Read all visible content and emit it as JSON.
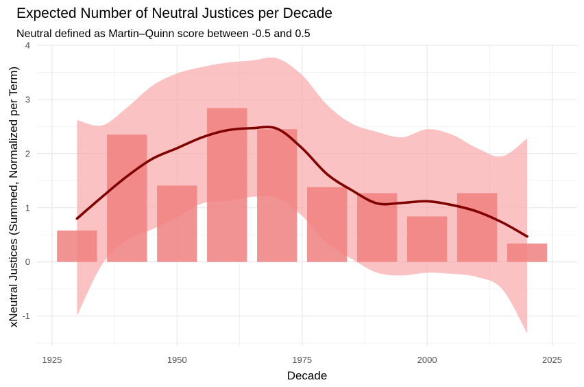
{
  "chart_data": {
    "type": "bar",
    "title": "Expected Number of Neutral Justices per Decade",
    "subtitle": "Neutral defined as Martin–Quinn score between -0.5 and 0.5",
    "xlabel": "Decade",
    "ylabel": "xNeutral Justices (Summed, Normalized per Term)",
    "xlim": [
      1922,
      2030
    ],
    "ylim": [
      -1.55,
      4.0
    ],
    "x_ticks": [
      1925,
      1950,
      1975,
      2000,
      2025
    ],
    "y_ticks": [
      -1,
      0,
      1,
      2,
      3,
      4
    ],
    "grid": true,
    "legend": "none",
    "bar_color": "#f08080",
    "smooth_color": "#800000",
    "band_color": "#f8a5a5",
    "bars": {
      "x": [
        1930,
        1940,
        1950,
        1960,
        1970,
        1980,
        1990,
        2000,
        2010,
        2020
      ],
      "values": [
        0.58,
        2.35,
        1.41,
        2.84,
        2.45,
        1.38,
        1.27,
        0.84,
        1.27,
        0.34
      ]
    },
    "smooth": {
      "x": [
        1930,
        1935,
        1940,
        1945,
        1950,
        1955,
        1960,
        1965,
        1970,
        1975,
        1980,
        1985,
        1990,
        1995,
        2000,
        2005,
        2010,
        2015,
        2020
      ],
      "values": [
        0.8,
        1.2,
        1.58,
        1.9,
        2.1,
        2.3,
        2.43,
        2.47,
        2.46,
        2.1,
        1.62,
        1.32,
        1.08,
        1.09,
        1.12,
        1.05,
        0.93,
        0.73,
        0.47
      ]
    },
    "band": {
      "x": [
        1930,
        1935,
        1940,
        1945,
        1950,
        1955,
        1960,
        1965,
        1970,
        1975,
        1980,
        1985,
        1990,
        1995,
        2000,
        2005,
        2010,
        2015,
        2020
      ],
      "upper": [
        2.62,
        2.52,
        2.85,
        3.25,
        3.48,
        3.6,
        3.68,
        3.72,
        3.76,
        3.45,
        2.9,
        2.55,
        2.4,
        2.3,
        2.45,
        2.35,
        2.1,
        1.95,
        2.28
      ],
      "lower": [
        -1.0,
        -0.05,
        0.4,
        0.6,
        0.82,
        1.08,
        1.12,
        1.2,
        1.18,
        0.85,
        0.35,
        0.05,
        -0.2,
        -0.25,
        -0.2,
        -0.22,
        -0.28,
        -0.5,
        -1.32
      ]
    }
  }
}
